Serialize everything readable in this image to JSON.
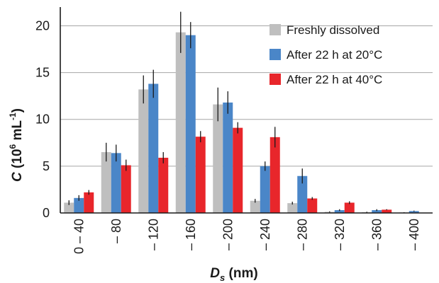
{
  "chart_data": {
    "type": "bar",
    "categories": [
      "0 – 40",
      "– 80",
      "– 120",
      "– 160",
      "– 200",
      "– 240",
      "– 280",
      "– 320",
      "– 360",
      "– 400"
    ],
    "series": [
      {
        "name": "Freshly dissolved",
        "color": "#bfbfbf",
        "values": [
          1.1,
          6.5,
          13.2,
          19.3,
          11.6,
          1.3,
          1.05,
          0.12,
          0.08,
          0.05
        ],
        "errors": [
          0.25,
          1.0,
          1.5,
          2.2,
          1.8,
          0.2,
          0.15,
          0.05,
          0.05,
          0.03
        ]
      },
      {
        "name": "After 22 h at 20°C",
        "color": "#4a86c8",
        "values": [
          1.6,
          6.4,
          13.8,
          19.0,
          11.8,
          5.0,
          3.95,
          0.3,
          0.3,
          0.2
        ],
        "errors": [
          0.3,
          0.9,
          1.5,
          1.4,
          1.2,
          0.5,
          0.8,
          0.1,
          0.1,
          0.05
        ]
      },
      {
        "name": "After 22 h at 40°C",
        "color": "#e8262b",
        "values": [
          2.2,
          5.1,
          5.9,
          8.15,
          9.1,
          8.1,
          1.55,
          1.1,
          0.35,
          0.0
        ],
        "errors": [
          0.25,
          0.6,
          0.6,
          0.6,
          0.6,
          1.1,
          0.15,
          0.15,
          0.05,
          0.0
        ]
      }
    ],
    "y_ticks": [
      "0",
      "5",
      "10",
      "15",
      "20"
    ],
    "ylim": [
      0,
      22
    ],
    "ylabel": {
      "var": "C",
      "unit_open": " (10",
      "unit_exp": "6",
      "unit_mid": " mL",
      "unit_exp2": "-1",
      "unit_close": ")"
    },
    "xlabel": {
      "var": "D",
      "sub": "s",
      "unit": " (nm)"
    },
    "grid": true,
    "legend_position": "top-right"
  }
}
